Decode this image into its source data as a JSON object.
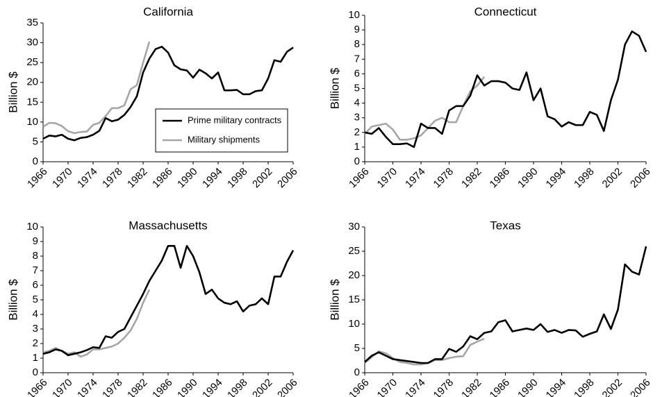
{
  "chart_data": [
    {
      "type": "line",
      "title": "California",
      "ylabel": "Billion $",
      "x": [
        1966,
        1967,
        1968,
        1969,
        1970,
        1971,
        1972,
        1973,
        1974,
        1975,
        1976,
        1977,
        1978,
        1979,
        1980,
        1981,
        1982,
        1983,
        1984,
        1985,
        1986,
        1987,
        1988,
        1989,
        1990,
        1991,
        1992,
        1993,
        1994,
        1995,
        1996,
        1997,
        1998,
        1999,
        2000,
        2001,
        2002,
        2003,
        2004,
        2005,
        2006
      ],
      "xlim": [
        1966,
        2006
      ],
      "xticks": [
        1966,
        1970,
        1974,
        1978,
        1982,
        1986,
        1990,
        1994,
        1998,
        2002,
        2006
      ],
      "ylim": [
        0,
        35
      ],
      "yticks": [
        0,
        5,
        10,
        15,
        20,
        25,
        30,
        35
      ],
      "legend": "lower right",
      "series": [
        {
          "name": "Prime military contracts",
          "color": "#000000",
          "values": [
            5.8,
            6.6,
            6.4,
            6.8,
            5.8,
            5.4,
            6.0,
            6.2,
            6.8,
            7.8,
            11.0,
            10.2,
            10.6,
            11.8,
            13.8,
            16.5,
            22.5,
            26.0,
            28.4,
            29.0,
            27.5,
            24.3,
            23.3,
            23.0,
            21.2,
            23.2,
            22.3,
            21.0,
            22.5,
            18.0,
            18.0,
            18.1,
            17.0,
            17.0,
            17.8,
            18.0,
            21.0,
            25.6,
            25.2,
            27.7,
            28.8
          ]
        },
        {
          "name": "Military shipments",
          "color": "#a6a6a6",
          "values": [
            8.8,
            9.8,
            9.7,
            9.0,
            7.7,
            7.2,
            7.5,
            7.6,
            9.3,
            9.8,
            11.5,
            13.5,
            13.5,
            14.2,
            18.3,
            19.3,
            25.0,
            30.3,
            null,
            null,
            null,
            null,
            null,
            null,
            null,
            null,
            null,
            null,
            null,
            null,
            null,
            null,
            null,
            null,
            null,
            null,
            null,
            null,
            null,
            null,
            null
          ]
        }
      ]
    },
    {
      "type": "line",
      "title": "Connecticut",
      "ylabel": "Billion $",
      "x": [
        1966,
        1967,
        1968,
        1969,
        1970,
        1971,
        1972,
        1973,
        1974,
        1975,
        1976,
        1977,
        1978,
        1979,
        1980,
        1981,
        1982,
        1983,
        1984,
        1985,
        1986,
        1987,
        1988,
        1989,
        1990,
        1991,
        1992,
        1993,
        1994,
        1995,
        1996,
        1997,
        1998,
        1999,
        2000,
        2001,
        2002,
        2003,
        2004,
        2005,
        2006
      ],
      "xlim": [
        1966,
        2006
      ],
      "xticks": [
        1966,
        1970,
        1974,
        1978,
        1982,
        1986,
        1990,
        1994,
        1998,
        2002,
        2006
      ],
      "ylim": [
        0,
        10
      ],
      "yticks": [
        0,
        1,
        2,
        3,
        4,
        5,
        6,
        7,
        8,
        9,
        10
      ],
      "series": [
        {
          "color": "#000000",
          "values": [
            2.0,
            1.9,
            2.3,
            1.7,
            1.2,
            1.2,
            1.25,
            1.0,
            2.6,
            2.3,
            2.3,
            1.9,
            3.5,
            3.8,
            3.8,
            4.5,
            5.9,
            5.2,
            5.5,
            5.5,
            5.4,
            5.0,
            4.9,
            6.1,
            4.2,
            5.0,
            3.1,
            2.9,
            2.4,
            2.7,
            2.5,
            2.5,
            3.4,
            3.2,
            2.1,
            4.2,
            5.6,
            8.0,
            8.9,
            8.6,
            7.5
          ]
        },
        {
          "color": "#a6a6a6",
          "values": [
            1.9,
            2.4,
            2.5,
            2.6,
            2.2,
            1.5,
            1.5,
            1.6,
            1.8,
            2.3,
            2.8,
            3.0,
            2.7,
            2.7,
            3.8,
            4.8,
            5.2,
            5.8,
            null,
            null,
            null,
            null,
            null,
            null,
            null,
            null,
            null,
            null,
            null,
            null,
            null,
            null,
            null,
            null,
            null,
            null,
            null,
            null,
            null,
            null,
            null
          ]
        }
      ]
    },
    {
      "type": "line",
      "title": "Massachusetts",
      "ylabel": "Billion $",
      "x": [
        1966,
        1967,
        1968,
        1969,
        1970,
        1971,
        1972,
        1973,
        1974,
        1975,
        1976,
        1977,
        1978,
        1979,
        1980,
        1981,
        1982,
        1983,
        1984,
        1985,
        1986,
        1987,
        1988,
        1989,
        1990,
        1991,
        1992,
        1993,
        1994,
        1995,
        1996,
        1997,
        1998,
        1999,
        2000,
        2001,
        2002,
        2003,
        2004,
        2005,
        2006
      ],
      "xlim": [
        1966,
        2006
      ],
      "xticks": [
        1966,
        1970,
        1974,
        1978,
        1982,
        1986,
        1990,
        1994,
        1998,
        2002,
        2006
      ],
      "ylim": [
        0,
        10
      ],
      "yticks": [
        0,
        1,
        2,
        3,
        4,
        5,
        6,
        7,
        8,
        9,
        10
      ],
      "series": [
        {
          "color": "#000000",
          "values": [
            1.3,
            1.4,
            1.6,
            1.5,
            1.2,
            1.3,
            1.4,
            1.55,
            1.75,
            1.7,
            2.5,
            2.4,
            2.8,
            3.0,
            3.8,
            4.6,
            5.4,
            6.3,
            7.0,
            7.7,
            8.7,
            8.7,
            7.2,
            8.7,
            8.0,
            6.9,
            5.4,
            5.7,
            5.1,
            4.8,
            4.7,
            4.9,
            4.2,
            4.6,
            4.7,
            5.1,
            4.7,
            6.6,
            6.6,
            7.6,
            8.4
          ]
        },
        {
          "color": "#a6a6a6",
          "values": [
            1.4,
            1.5,
            1.7,
            1.5,
            1.3,
            1.4,
            1.1,
            1.25,
            1.6,
            1.6,
            1.7,
            1.8,
            2.0,
            2.4,
            2.9,
            3.7,
            4.8,
            5.7,
            null,
            null,
            null,
            null,
            null,
            null,
            null,
            null,
            null,
            null,
            null,
            null,
            null,
            null,
            null,
            null,
            null,
            null,
            null,
            null,
            null,
            null,
            null
          ]
        }
      ]
    },
    {
      "type": "line",
      "title": "Texas",
      "ylabel": "Billion $",
      "x": [
        1966,
        1967,
        1968,
        1969,
        1970,
        1971,
        1972,
        1973,
        1974,
        1975,
        1976,
        1977,
        1978,
        1979,
        1980,
        1981,
        1982,
        1983,
        1984,
        1985,
        1986,
        1987,
        1988,
        1989,
        1990,
        1991,
        1992,
        1993,
        1994,
        1995,
        1996,
        1997,
        1998,
        1999,
        2000,
        2001,
        2002,
        2003,
        2004,
        2005,
        2006
      ],
      "xlim": [
        1966,
        2006
      ],
      "xticks": [
        1966,
        1970,
        1974,
        1978,
        1982,
        1986,
        1990,
        1994,
        1998,
        2002,
        2006
      ],
      "ylim": [
        0,
        30
      ],
      "yticks": [
        0,
        5,
        10,
        15,
        20,
        25,
        30
      ],
      "series": [
        {
          "color": "#000000",
          "values": [
            2.2,
            3.5,
            4.2,
            3.5,
            2.8,
            2.6,
            2.4,
            2.2,
            2.0,
            2.0,
            2.8,
            2.8,
            4.9,
            4.3,
            5.4,
            7.5,
            6.9,
            8.2,
            8.5,
            10.4,
            10.8,
            8.5,
            8.8,
            9.1,
            8.8,
            10.0,
            8.4,
            8.8,
            8.2,
            8.8,
            8.7,
            7.4,
            8.0,
            8.5,
            12.0,
            9.0,
            13.0,
            22.3,
            20.8,
            20.2,
            26.0
          ]
        },
        {
          "color": "#a6a6a6",
          "values": [
            2.0,
            3.2,
            4.4,
            4.0,
            3.0,
            2.2,
            2.0,
            1.7,
            1.7,
            2.0,
            2.6,
            2.6,
            3.0,
            3.3,
            3.4,
            5.7,
            6.4,
            7.0,
            null,
            null,
            null,
            null,
            null,
            null,
            null,
            null,
            null,
            null,
            null,
            null,
            null,
            null,
            null,
            null,
            null,
            null,
            null,
            null,
            null,
            null,
            null
          ]
        }
      ]
    }
  ]
}
